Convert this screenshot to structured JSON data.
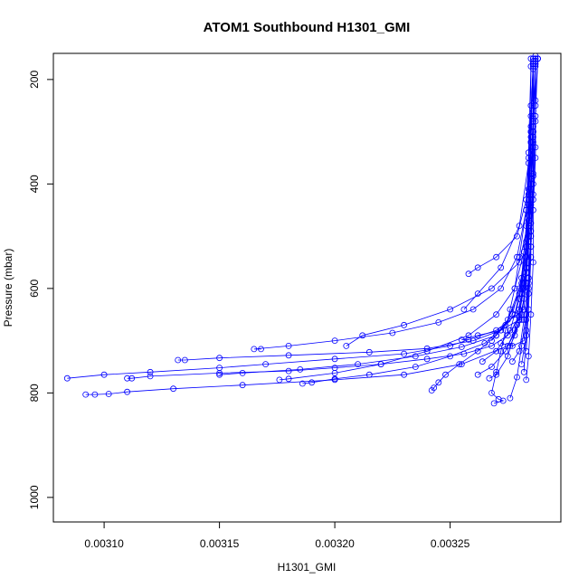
{
  "chart_data": {
    "type": "line",
    "title": "ATOM1 Southbound H1301_GMI",
    "xlabel": "H1301_GMI",
    "ylabel": "Pressure (mbar)",
    "xlim": [
      0.003078,
      0.003298
    ],
    "ylim": [
      1047,
      150
    ],
    "y_reversed": true,
    "x_ticks": [
      "0.00310",
      "0.00315",
      "0.00320",
      "0.00325"
    ],
    "x_tick_values": [
      0.0031,
      0.00315,
      0.0032,
      0.00325
    ],
    "y_ticks": [
      "200",
      "400",
      "600",
      "800",
      "1000"
    ],
    "y_tick_values": [
      200,
      400,
      600,
      800,
      1000
    ],
    "grid": false,
    "color": "#0000ff",
    "marker": "open-circle",
    "series": [
      {
        "x": [
          0.003285,
          0.003285,
          0.003284,
          0.003283,
          0.00328,
          0.003278,
          0.003276,
          0.003274,
          0.003272,
          0.00327,
          0.003268,
          0.003271,
          0.003273,
          0.003269
        ],
        "y": [
          160,
          250,
          350,
          450,
          540,
          600,
          640,
          680,
          720,
          760,
          800,
          812,
          815,
          820
        ]
      },
      {
        "x": [
          0.003286,
          0.003286,
          0.003285,
          0.003284,
          0.003283,
          0.003282,
          0.00327,
          0.00325,
          0.00323,
          0.0032,
          0.00317,
          0.00315,
          0.00312,
          0.0031,
          0.003084
        ],
        "y": [
          160,
          260,
          380,
          470,
          560,
          640,
          680,
          710,
          725,
          735,
          745,
          752,
          760,
          765,
          772
        ]
      },
      {
        "x": [
          0.003286,
          0.003285,
          0.003285,
          0.003284,
          0.003283,
          0.003281,
          0.003275,
          0.003255,
          0.00323,
          0.0032,
          0.00316,
          0.00313,
          0.00311,
          0.003102,
          0.003096,
          0.003092
        ],
        "y": [
          170,
          270,
          390,
          480,
          570,
          660,
          710,
          745,
          765,
          775,
          785,
          792,
          798,
          802,
          803,
          803
        ]
      },
      {
        "x": [
          0.003286,
          0.003286,
          0.003285,
          0.003284,
          0.003282,
          0.00328,
          0.003275,
          0.003268,
          0.003256,
          0.00324,
          0.00322,
          0.0032,
          0.00318,
          0.00315,
          0.00312,
          0.003112,
          0.00311
        ],
        "y": [
          165,
          280,
          390,
          500,
          590,
          655,
          690,
          710,
          725,
          735,
          745,
          752,
          758,
          762,
          768,
          772,
          772
        ]
      },
      {
        "x": [
          0.003287,
          0.003286,
          0.003286,
          0.003285,
          0.003283,
          0.00328,
          0.003272,
          0.00326,
          0.00324,
          0.003215,
          0.00318,
          0.00315,
          0.003135,
          0.003132
        ],
        "y": [
          165,
          275,
          385,
          475,
          560,
          640,
          680,
          700,
          715,
          722,
          728,
          733,
          737,
          737
        ]
      },
      {
        "x": [
          0.003286,
          0.003285,
          0.003284,
          0.003283,
          0.003281,
          0.003278,
          0.00327,
          0.003255,
          0.003235,
          0.00321,
          0.003185,
          0.00316,
          0.00315
        ],
        "y": [
          170,
          300,
          420,
          510,
          590,
          650,
          690,
          712,
          730,
          745,
          755,
          762,
          765
        ]
      },
      {
        "x": [
          0.003286,
          0.003285,
          0.003283,
          0.003279,
          0.003272,
          0.00326,
          0.003245,
          0.003225,
          0.0032,
          0.00318,
          0.003165,
          0.003168
        ],
        "y": [
          175,
          320,
          450,
          540,
          600,
          640,
          665,
          685,
          700,
          710,
          716,
          716
        ]
      },
      {
        "x": [
          0.003286,
          0.003285,
          0.003284,
          0.003282,
          0.003278,
          0.00327,
          0.003258,
          0.00324,
          0.00322,
          0.0032,
          0.00318,
          0.003176
        ],
        "y": [
          170,
          310,
          440,
          530,
          600,
          650,
          690,
          720,
          745,
          762,
          773,
          775
        ]
      },
      {
        "x": [
          0.003286,
          0.003285,
          0.003284,
          0.003283,
          0.00328,
          0.003274,
          0.003265,
          0.00325,
          0.003235,
          0.003215,
          0.0032,
          0.00319,
          0.003186
        ],
        "y": [
          170,
          300,
          420,
          520,
          610,
          670,
          705,
          730,
          750,
          765,
          773,
          780,
          782
        ]
      },
      {
        "x": [
          0.003287,
          0.003286,
          0.003284,
          0.00328,
          0.003268,
          0.00325,
          0.00323,
          0.003212,
          0.003205
        ],
        "y": [
          170,
          330,
          470,
          550,
          600,
          640,
          670,
          690,
          710
        ]
      },
      {
        "x": [
          0.003285,
          0.003284,
          0.003283,
          0.003281,
          0.003277,
          0.00327,
          0.003262,
          0.003254,
          0.003248,
          0.003245,
          0.003243,
          0.003242
        ],
        "y": [
          175,
          340,
          480,
          580,
          650,
          690,
          720,
          745,
          765,
          780,
          790,
          795
        ]
      },
      {
        "x": [
          0.003286,
          0.003285,
          0.003284,
          0.003283,
          0.003282,
          0.00328,
          0.003272,
          0.003262,
          0.003255,
          0.003258
        ],
        "y": [
          170,
          320,
          460,
          560,
          620,
          660,
          680,
          690,
          698,
          698
        ]
      },
      {
        "x": [
          0.003286,
          0.003285,
          0.003284,
          0.003283,
          0.003281,
          0.003278,
          0.003274,
          0.003268,
          0.003262
        ],
        "y": [
          160,
          290,
          410,
          520,
          610,
          680,
          720,
          750,
          765
        ]
      },
      {
        "x": [
          0.003287,
          0.003286,
          0.003285,
          0.003284,
          0.003282,
          0.003279,
          0.003275,
          0.00327,
          0.003267
        ],
        "y": [
          155,
          280,
          400,
          510,
          600,
          670,
          730,
          765,
          772
        ]
      },
      {
        "x": [
          0.003288,
          0.003287,
          0.003287,
          0.003286,
          0.003285,
          0.003284,
          0.003283,
          0.003281
        ],
        "y": [
          160,
          240,
          330,
          430,
          520,
          610,
          690,
          745
        ]
      },
      {
        "x": [
          0.003287,
          0.003287,
          0.003286,
          0.003285,
          0.003284,
          0.003283,
          0.003281,
          0.003279,
          0.003276
        ],
        "y": [
          160,
          280,
          400,
          500,
          580,
          650,
          710,
          770,
          810
        ]
      },
      {
        "x": [
          0.003288,
          0.003287,
          0.003287,
          0.003286,
          0.003286,
          0.003285,
          0.003284,
          0.003283
        ],
        "y": [
          160,
          250,
          350,
          450,
          550,
          650,
          730,
          775
        ]
      },
      {
        "x": [
          0.003287,
          0.003286,
          0.003286,
          0.003285,
          0.003284,
          0.003283,
          0.003282,
          0.003277,
          0.003272
        ],
        "y": [
          170,
          300,
          420,
          520,
          600,
          660,
          700,
          710,
          705
        ]
      },
      {
        "x": [
          0.003286,
          0.003285,
          0.003283,
          0.003279,
          0.00327,
          0.003262,
          0.003258
        ],
        "y": [
          170,
          320,
          430,
          500,
          540,
          560,
          572
        ]
      },
      {
        "x": [
          0.003286,
          0.003284,
          0.00328,
          0.003272,
          0.003262,
          0.003256
        ],
        "y": [
          180,
          360,
          480,
          560,
          610,
          640
        ]
      },
      {
        "x": [
          0.003287,
          0.003286,
          0.003285,
          0.003284,
          0.003284,
          0.003283,
          0.003282
        ],
        "y": [
          165,
          300,
          410,
          500,
          590,
          680,
          760
        ]
      },
      {
        "x": [
          0.003286,
          0.003286,
          0.003285,
          0.003285,
          0.003284,
          0.003283
        ],
        "y": [
          170,
          310,
          430,
          540,
          640,
          720
        ]
      },
      {
        "x": [
          0.003287,
          0.003286,
          0.003285,
          0.003284,
          0.003283,
          0.003281,
          0.003278,
          0.003276
        ],
        "y": [
          160,
          290,
          410,
          510,
          590,
          650,
          690,
          710
        ]
      },
      {
        "x": [
          0.003288,
          0.003287,
          0.003286,
          0.003285,
          0.003284,
          0.003282,
          0.00328,
          0.003277
        ],
        "y": [
          160,
          270,
          380,
          490,
          580,
          660,
          720,
          740
        ]
      },
      {
        "x": [
          0.003287,
          0.003286,
          0.003285,
          0.003283,
          0.00328,
          0.003275,
          0.003268
        ],
        "y": [
          175,
          300,
          420,
          520,
          600,
          660,
          700
        ]
      },
      {
        "x": [
          0.003286,
          0.003286,
          0.003285,
          0.003283,
          0.00328,
          0.003276,
          0.00327,
          0.003264
        ],
        "y": [
          175,
          320,
          440,
          540,
          620,
          680,
          720,
          740
        ]
      }
    ]
  }
}
